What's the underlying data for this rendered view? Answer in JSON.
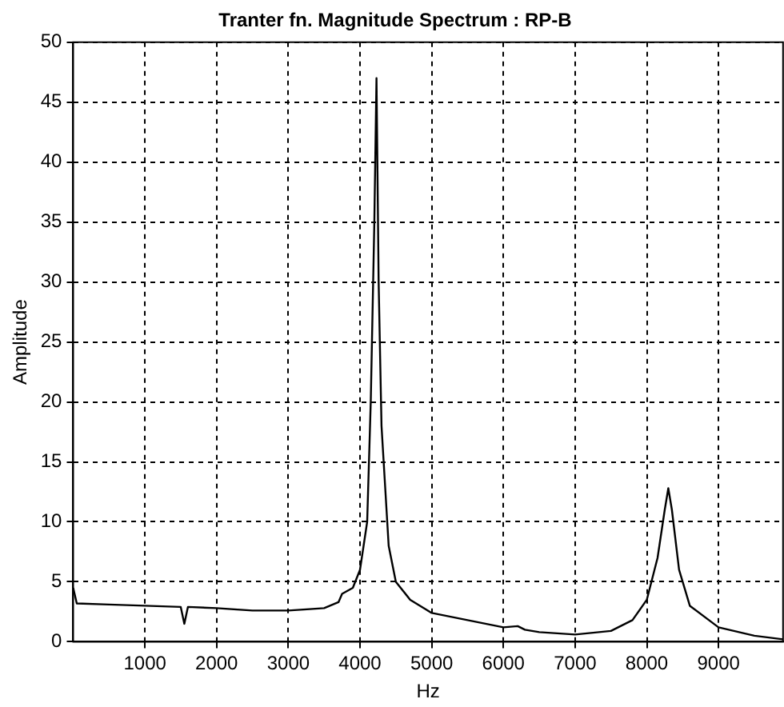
{
  "chart_data": {
    "type": "line",
    "title": "Tranter fn. Magnitude Spectrum : RP-B",
    "xlabel": "Hz",
    "ylabel": "Amplitude",
    "series": [
      {
        "color": "#000000",
        "x": [
          0,
          50,
          500,
          1000,
          1500,
          1550,
          1600,
          2000,
          2500,
          3000,
          3500,
          3700,
          3750,
          3900,
          4000,
          4100,
          4150,
          4200,
          4230,
          4260,
          4300,
          4400,
          4500,
          4700,
          5000,
          5500,
          6000,
          6200,
          6300,
          6500,
          7000,
          7500,
          7800,
          8000,
          8150,
          8250,
          8300,
          8350,
          8450,
          8600,
          9000,
          9500,
          9900
        ],
        "values": [
          4.5,
          3.2,
          3.1,
          3.0,
          2.9,
          1.5,
          2.9,
          2.8,
          2.6,
          2.6,
          2.8,
          3.3,
          4.0,
          4.5,
          6,
          10,
          20,
          35,
          47,
          30,
          18,
          8,
          5,
          3.5,
          2.4,
          1.8,
          1.2,
          1.3,
          1.0,
          0.8,
          0.6,
          0.9,
          1.8,
          3.5,
          7,
          11,
          12.8,
          11,
          6,
          3,
          1.2,
          0.5,
          0.2
        ]
      }
    ],
    "xlim": [
      0,
      9900
    ],
    "xticks": [
      1000,
      2000,
      3000,
      4000,
      5000,
      6000,
      7000,
      8000,
      9000
    ],
    "ylim": [
      0,
      50
    ],
    "yticks": [
      0,
      5,
      10,
      15,
      20,
      25,
      30,
      35,
      40,
      45,
      50
    ],
    "grid": true,
    "legend": false,
    "marker": "none",
    "line_style": "solid"
  }
}
